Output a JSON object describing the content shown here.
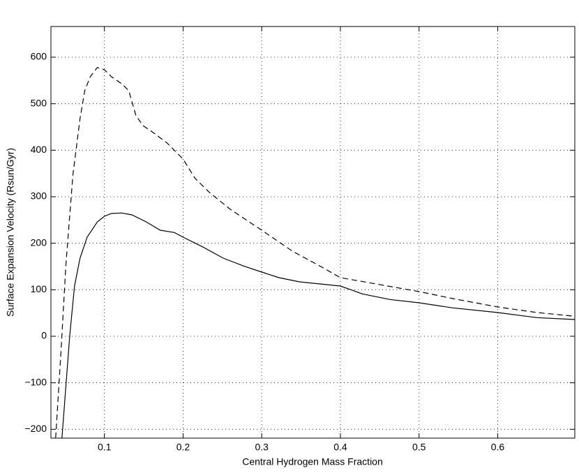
{
  "chart_data": {
    "type": "line",
    "xlabel": "Central Hydrogen Mass Fraction",
    "ylabel": "Surface Expansion Velocity (Rsun/Gyr)",
    "xlim": [
      0.032,
      0.698
    ],
    "ylim": [
      -219,
      666
    ],
    "xticks": [
      0.1,
      0.2,
      0.3,
      0.4,
      0.5,
      0.6
    ],
    "yticks": [
      {
        "value": -200,
        "label": "−200"
      },
      {
        "value": -100,
        "label": "−100"
      },
      0,
      100,
      200,
      300,
      400,
      500,
      600
    ],
    "grid": true,
    "series": [
      {
        "color": "#000000",
        "style": "solid",
        "x": [
          0.046,
          0.056,
          0.062,
          0.069,
          0.078,
          0.091,
          0.1,
          0.109,
          0.122,
          0.135,
          0.153,
          0.171,
          0.189,
          0.2,
          0.224,
          0.251,
          0.277,
          0.3,
          0.322,
          0.348,
          0.4,
          0.428,
          0.463,
          0.5,
          0.543,
          0.6,
          0.65,
          0.698
        ],
        "values": [
          -219,
          3,
          108,
          168,
          213,
          246,
          258,
          264,
          265,
          261,
          246,
          228,
          223,
          213,
          193,
          168,
          151,
          138,
          126,
          117,
          108,
          91,
          79,
          72,
          61,
          51,
          40,
          36
        ]
      },
      {
        "color": "#000000",
        "style": "dashed",
        "x": [
          0.038,
          0.045,
          0.051,
          0.06,
          0.069,
          0.075,
          0.082,
          0.091,
          0.1,
          0.109,
          0.122,
          0.131,
          0.14,
          0.149,
          0.162,
          0.18,
          0.2,
          0.215,
          0.233,
          0.26,
          0.3,
          0.339,
          0.375,
          0.4,
          0.437,
          0.5,
          0.543,
          0.6,
          0.65,
          0.698
        ],
        "values": [
          -219,
          -27,
          153,
          348,
          468,
          528,
          558,
          578,
          573,
          558,
          543,
          528,
          475,
          453,
          438,
          415,
          381,
          340,
          310,
          273,
          228,
          183,
          150,
          126,
          115,
          96,
          81,
          63,
          51,
          43
        ]
      }
    ]
  }
}
